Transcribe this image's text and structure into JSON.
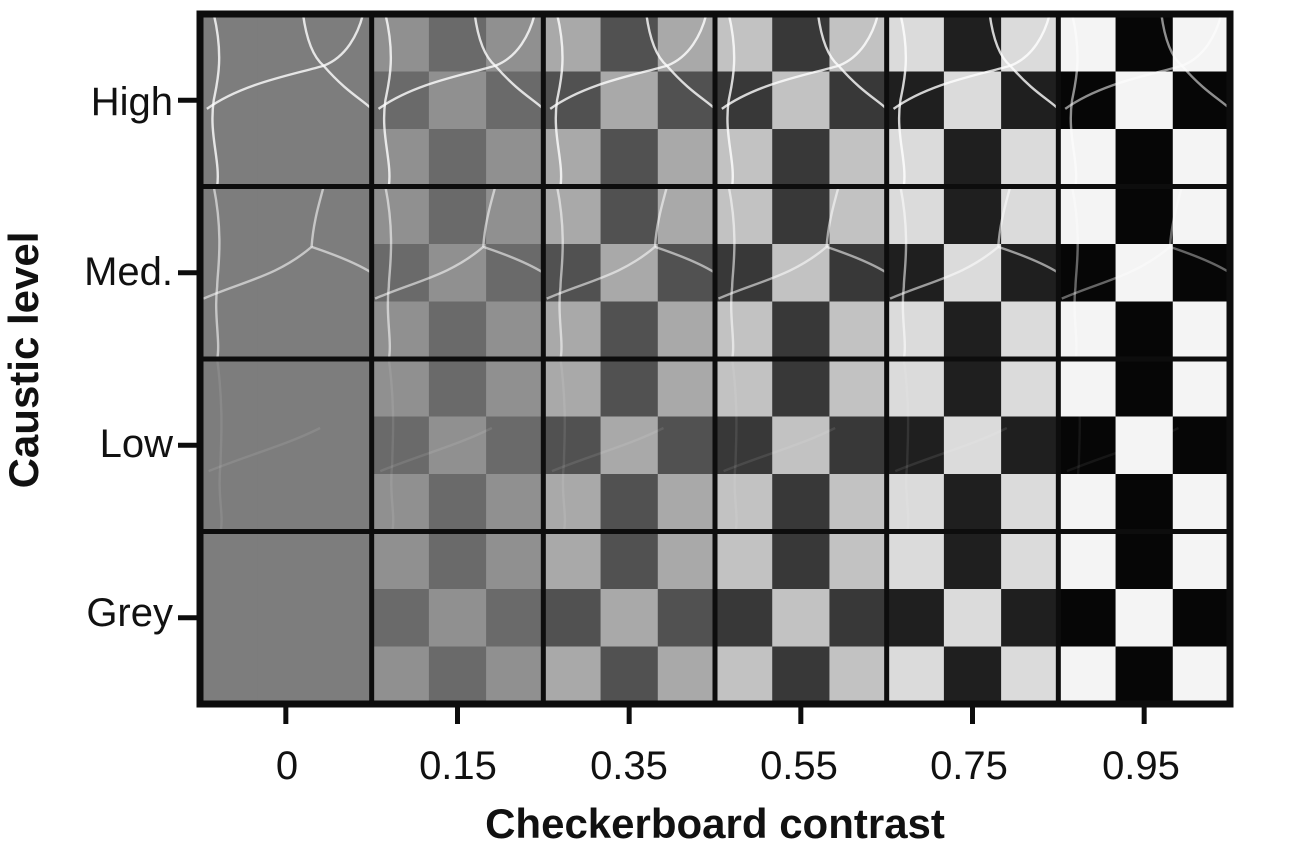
{
  "figure": {
    "type": "image-grid",
    "x_axis_title": "Checkerboard contrast",
    "y_axis_title": "Caustic level",
    "columns": [
      "0",
      "0.15",
      "0.35",
      "0.55",
      "0.75",
      "0.95"
    ],
    "rows": [
      "High",
      "Med.",
      "Low",
      "Grey"
    ],
    "contrast_values": [
      0,
      0.15,
      0.35,
      0.55,
      0.75,
      0.95
    ],
    "caustic_strength": {
      "High": 1.0,
      "Med.": 0.7,
      "Low": 0.12,
      "Grey": 0.0
    },
    "checkerboard": {
      "rows": 3,
      "cols": 3,
      "base_grey": "#7d7d7d"
    },
    "colors": {
      "frame": "#0d0d0d",
      "background": "#ffffff",
      "text": "#111111"
    }
  }
}
